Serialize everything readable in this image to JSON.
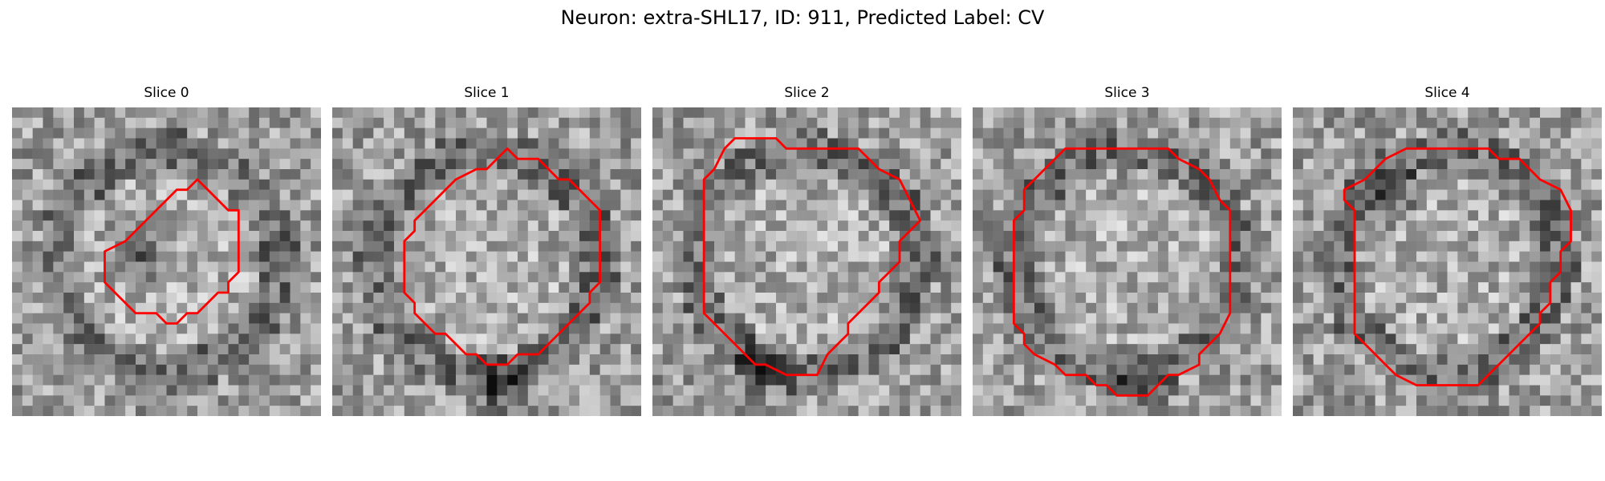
{
  "figure": {
    "title": "Neuron: extra-SHL17, ID: 911, Predicted Label: CV",
    "contour_color": "#ff0000"
  },
  "panels": [
    {
      "title": "Slice 0",
      "seed": 11,
      "dark_spot": [
        0.42,
        0.45,
        0.14
      ]
    },
    {
      "title": "Slice 1",
      "seed": 23,
      "dark_spot": [
        0.55,
        0.92,
        0.12
      ]
    },
    {
      "title": "Slice 2",
      "seed": 37,
      "dark_spot": [
        0.35,
        0.85,
        0.12
      ]
    },
    {
      "title": "Slice 3",
      "seed": 51,
      "dark_spot": [
        0.55,
        0.92,
        0.12
      ]
    },
    {
      "title": "Slice 4",
      "seed": 67,
      "dark_spot": [
        0.33,
        0.28,
        0.12
      ]
    }
  ]
}
